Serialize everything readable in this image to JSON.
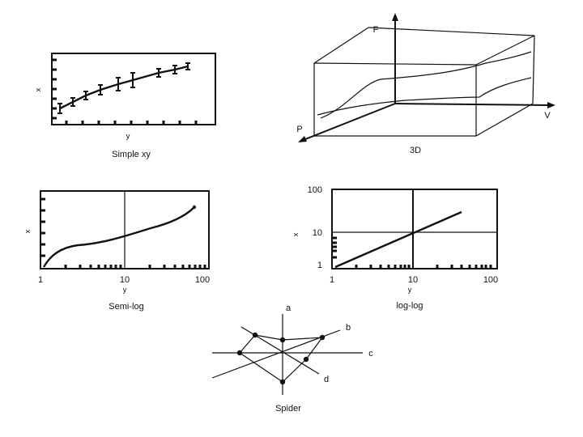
{
  "panels": {
    "simple_xy": {
      "caption": "Simple xy",
      "xlabel": "y",
      "ylabel": "x"
    },
    "three_d": {
      "caption": "3D",
      "axis_f": "F",
      "axis_v": "V",
      "axis_p": "P"
    },
    "semi_log": {
      "caption": "Semi-log",
      "xlabel": "y",
      "ylabel": "x",
      "xticks": [
        "1",
        "10",
        "100"
      ]
    },
    "log_log": {
      "caption": "log-log",
      "xlabel": "y",
      "ylabel": "x",
      "xticks": [
        "1",
        "10",
        "100"
      ],
      "yticks": [
        "100",
        "10",
        "1"
      ]
    },
    "spider": {
      "caption": "Spider",
      "axes": [
        "a",
        "b",
        "c",
        "d"
      ]
    }
  }
}
